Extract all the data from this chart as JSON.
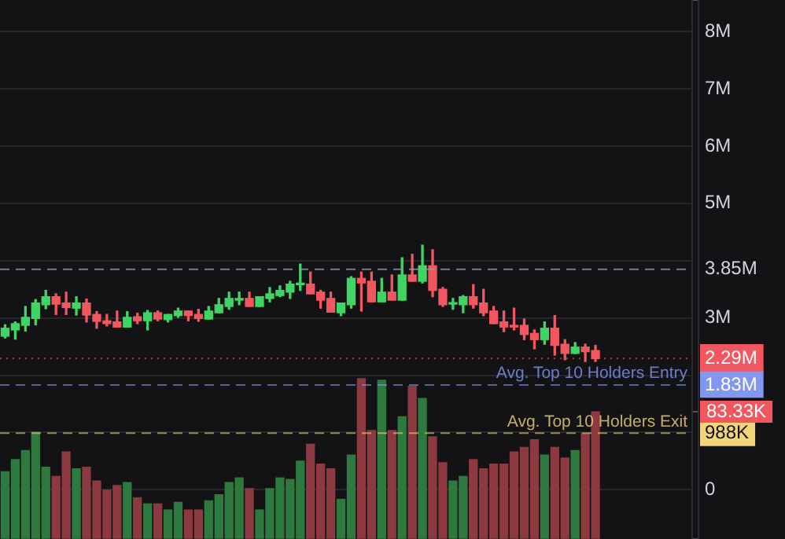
{
  "chart_data": {
    "type": "candlestick",
    "categories": [
      null,
      null,
      null,
      null,
      null,
      null,
      null,
      null,
      null,
      null,
      null,
      null,
      null,
      null,
      null,
      null,
      null,
      null,
      null,
      null,
      null,
      null,
      null,
      null,
      null,
      null,
      null,
      null,
      null,
      null,
      null,
      null,
      null,
      null,
      null,
      null,
      null,
      null,
      null,
      null,
      null,
      null,
      null,
      null,
      null,
      null,
      null,
      null,
      null,
      null,
      null,
      null,
      null,
      null,
      null,
      null,
      null,
      null,
      null,
      null,
      null,
      null,
      null,
      null,
      null,
      null,
      null,
      null
    ],
    "ohlc": [
      [
        2680000,
        2880000,
        2650000,
        2820000
      ],
      [
        2790000,
        2930000,
        2630000,
        2900000
      ],
      [
        2870000,
        3200000,
        2770000,
        3010000
      ],
      [
        2990000,
        3320000,
        2880000,
        3260000
      ],
      [
        3230000,
        3480000,
        3160000,
        3370000
      ],
      [
        3370000,
        3420000,
        3060000,
        3240000
      ],
      [
        3260000,
        3450000,
        3060000,
        3180000
      ],
      [
        3170000,
        3370000,
        3050000,
        3260000
      ],
      [
        3260000,
        3330000,
        2930000,
        3050000
      ],
      [
        3060000,
        3110000,
        2820000,
        2940000
      ],
      [
        2950000,
        3060000,
        2860000,
        2900000
      ],
      [
        2930000,
        3120000,
        2840000,
        2840000
      ],
      [
        2840000,
        3110000,
        2840000,
        3010000
      ],
      [
        3020000,
        3080000,
        2900000,
        2950000
      ],
      [
        2950000,
        3130000,
        2790000,
        3090000
      ],
      [
        3090000,
        3120000,
        2950000,
        2980000
      ],
      [
        2970000,
        3060000,
        2930000,
        3060000
      ],
      [
        3040000,
        3170000,
        3010000,
        3120000
      ],
      [
        3120000,
        3120000,
        2950000,
        3040000
      ],
      [
        3060000,
        3150000,
        2940000,
        2990000
      ],
      [
        2980000,
        3200000,
        2980000,
        3120000
      ],
      [
        3090000,
        3340000,
        3090000,
        3230000
      ],
      [
        3200000,
        3450000,
        3150000,
        3340000
      ],
      [
        3310000,
        3450000,
        3230000,
        3340000
      ],
      [
        3340000,
        3450000,
        3200000,
        3200000
      ],
      [
        3200000,
        3370000,
        3200000,
        3370000
      ],
      [
        3340000,
        3530000,
        3280000,
        3420000
      ],
      [
        3390000,
        3560000,
        3370000,
        3480000
      ],
      [
        3450000,
        3640000,
        3340000,
        3590000
      ],
      [
        3580000,
        3940000,
        3480000,
        3600000
      ],
      [
        3590000,
        3800000,
        3420000,
        3420000
      ],
      [
        3450000,
        3480000,
        3170000,
        3310000
      ],
      [
        3340000,
        3450000,
        3100000,
        3100000
      ],
      [
        3090000,
        3260000,
        3040000,
        3260000
      ],
      [
        3230000,
        3720000,
        3170000,
        3690000
      ],
      [
        3690000,
        3800000,
        3120000,
        3610000
      ],
      [
        3640000,
        3800000,
        3280000,
        3280000
      ],
      [
        3280000,
        3690000,
        3280000,
        3450000
      ],
      [
        3450000,
        3750000,
        3310000,
        3310000
      ],
      [
        3310000,
        4050000,
        3310000,
        3750000
      ],
      [
        3750000,
        4110000,
        3640000,
        3640000
      ],
      [
        3640000,
        4270000,
        3610000,
        3910000
      ],
      [
        3910000,
        4190000,
        3370000,
        3480000
      ],
      [
        3500000,
        3530000,
        3200000,
        3230000
      ],
      [
        3240000,
        3340000,
        3150000,
        3260000
      ],
      [
        3230000,
        3390000,
        3090000,
        3370000
      ],
      [
        3370000,
        3580000,
        3170000,
        3230000
      ],
      [
        3260000,
        3500000,
        3040000,
        3090000
      ],
      [
        3120000,
        3200000,
        2900000,
        2900000
      ],
      [
        2930000,
        3120000,
        2760000,
        2840000
      ],
      [
        2870000,
        3170000,
        2790000,
        2840000
      ],
      [
        2870000,
        2980000,
        2620000,
        2710000
      ],
      [
        2730000,
        2790000,
        2460000,
        2620000
      ],
      [
        2620000,
        2930000,
        2540000,
        2820000
      ],
      [
        2820000,
        3040000,
        2350000,
        2520000
      ],
      [
        2540000,
        2620000,
        2270000,
        2380000
      ],
      [
        2380000,
        2570000,
        2380000,
        2490000
      ],
      [
        2490000,
        2540000,
        2240000,
        2410000
      ],
      [
        2430000,
        2520000,
        2240000,
        2290000
      ],
      null,
      null,
      null,
      null,
      null,
      null,
      null,
      null,
      null
    ],
    "colors": [
      "#3fd463",
      "#3fd463",
      "#3fd463",
      "#3fd463",
      "#3fd463",
      "#f2565f",
      "#f2565f",
      "#3fd463",
      "#f2565f",
      "#f2565f",
      "#f2565f",
      "#f2565f",
      "#3fd463",
      "#f2565f",
      "#3fd463",
      "#f2565f",
      "#3fd463",
      "#3fd463",
      "#f2565f",
      "#f2565f",
      "#3fd463",
      "#3fd463",
      "#3fd463",
      "#3fd463",
      "#f2565f",
      "#3fd463",
      "#3fd463",
      "#3fd463",
      "#3fd463",
      "#3fd463",
      "#f2565f",
      "#f2565f",
      "#f2565f",
      "#3fd463",
      "#3fd463",
      "#f2565f",
      "#f2565f",
      "#3fd463",
      "#f2565f",
      "#3fd463",
      "#f2565f",
      "#3fd463",
      "#f2565f",
      "#f2565f",
      "#3fd463",
      "#3fd463",
      "#f2565f",
      "#f2565f",
      "#f2565f",
      "#f2565f",
      "#f2565f",
      "#f2565f",
      "#f2565f",
      "#3fd463",
      "#f2565f",
      "#f2565f",
      "#3fd463",
      "#f2565f",
      "#f2565f",
      null,
      null,
      null,
      null,
      null,
      null,
      null,
      null,
      null
    ],
    "series": [
      {
        "type": "bar",
        "axis": "y2",
        "values": [
          44000,
          52000,
          58000,
          70000,
          47000,
          41000,
          57000,
          46000,
          47000,
          38000,
          32000,
          35000,
          37000,
          27000,
          23000,
          23000,
          19000,
          24000,
          19000,
          19000,
          25000,
          29000,
          37000,
          40000,
          33000,
          19000,
          33000,
          40000,
          39000,
          51000,
          62000,
          49000,
          46000,
          26000,
          55000,
          105000,
          71000,
          104000,
          71000,
          80000,
          100000,
          92000,
          67000,
          50000,
          38000,
          41000,
          52000,
          46000,
          49000,
          49000,
          57000,
          60000,
          65000,
          55000,
          60000,
          53000,
          58000,
          69000,
          83330,
          null,
          null,
          null,
          null,
          null,
          null,
          null,
          null,
          null
        ],
        "colors": [
          "#2e7a3e",
          "#2e7a3e",
          "#2e7a3e",
          "#2e7a3e",
          "#2e7a3e",
          "#8c3a3f",
          "#8c3a3f",
          "#2e7a3e",
          "#8c3a3f",
          "#8c3a3f",
          "#8c3a3f",
          "#8c3a3f",
          "#2e7a3e",
          "#8c3a3f",
          "#2e7a3e",
          "#8c3a3f",
          "#2e7a3e",
          "#2e7a3e",
          "#8c3a3f",
          "#8c3a3f",
          "#2e7a3e",
          "#2e7a3e",
          "#2e7a3e",
          "#2e7a3e",
          "#8c3a3f",
          "#2e7a3e",
          "#2e7a3e",
          "#2e7a3e",
          "#2e7a3e",
          "#2e7a3e",
          "#8c3a3f",
          "#8c3a3f",
          "#8c3a3f",
          "#2e7a3e",
          "#2e7a3e",
          "#8c3a3f",
          "#8c3a3f",
          "#2e7a3e",
          "#8c3a3f",
          "#2e7a3e",
          "#8c3a3f",
          "#2e7a3e",
          "#8c3a3f",
          "#8c3a3f",
          "#2e7a3e",
          "#2e7a3e",
          "#8c3a3f",
          "#8c3a3f",
          "#8c3a3f",
          "#8c3a3f",
          "#8c3a3f",
          "#8c3a3f",
          "#8c3a3f",
          "#2e7a3e",
          "#8c3a3f",
          "#8c3a3f",
          "#2e7a3e",
          "#8c3a3f",
          "#8c3a3f",
          null,
          null,
          null,
          null,
          null,
          null,
          null,
          null,
          null
        ]
      }
    ],
    "ylim": [
      -860000,
      8550000
    ],
    "yticks": [
      0,
      {
        "value": 988000,
        "label": "988K"
      },
      {
        "value": 1000000,
        "label": null
      },
      {
        "value": 1830000,
        "label": "1.83M"
      },
      {
        "value": 2000000,
        "label": null
      },
      {
        "value": 2290000,
        "label": "2.29M"
      },
      {
        "value": 3000000,
        "label": "3M"
      },
      {
        "value": 3850000,
        "label": "3.85M"
      },
      {
        "value": 4000000,
        "label": null
      },
      {
        "value": 5000000,
        "label": "5M"
      },
      {
        "value": 6000000,
        "label": "6M"
      },
      {
        "value": 7000000,
        "label": "7M"
      },
      {
        "value": 8000000,
        "label": "8M"
      }
    ],
    "y2lim": [
      0,
      353000
    ],
    "y2ticks": [
      {
        "value": 0,
        "label": null
      },
      {
        "value": 83330,
        "label": "83.33K"
      },
      {
        "value": 353000,
        "label": null
      }
    ],
    "ref_lines": [
      {
        "axis": "y",
        "value": 3850000,
        "label": null,
        "line_style": "dashed"
      },
      {
        "axis": "y",
        "value": 2290000,
        "label": null,
        "color": "#f2565f",
        "line_style": "dotted"
      },
      {
        "axis": "y",
        "value": 1830000,
        "label": "Avg. Top 10 Holders Entry",
        "color": "#8297f0",
        "line_style": "dashed"
      },
      {
        "axis": "y",
        "value": 988000,
        "label": "Avg. Top 10 Holders Exit",
        "color": "#f2d47a",
        "line_style": "dashed"
      }
    ],
    "grid": "y"
  }
}
